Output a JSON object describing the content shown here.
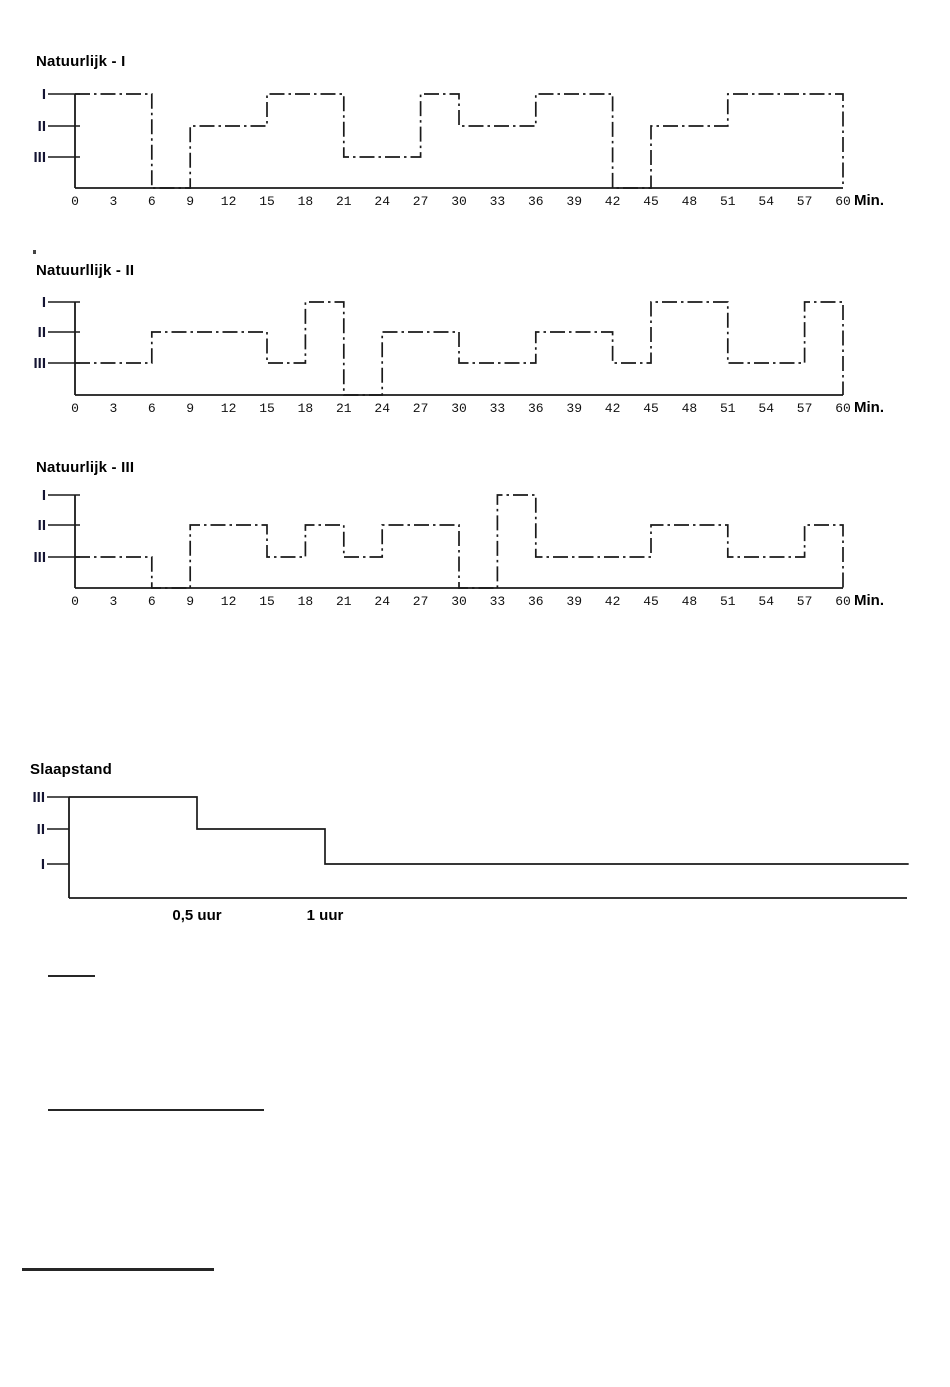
{
  "page": {
    "background": "#ffffff",
    "ink_color": "#1a1a1a"
  },
  "chart_data": [
    {
      "type": "line",
      "subtype": "step",
      "line_style": "dash-dot",
      "title": "Natuurlijk - I",
      "xlabel": "Min.",
      "xlim": [
        0,
        60
      ],
      "x_tick_interval": 3,
      "x_ticks": [
        0,
        3,
        6,
        9,
        12,
        15,
        18,
        21,
        24,
        27,
        30,
        33,
        36,
        39,
        42,
        45,
        48,
        51,
        54,
        57,
        60
      ],
      "y_categories_top_to_bottom": [
        "I",
        "II",
        "III"
      ],
      "grid": false,
      "segments": [
        {
          "from": 0,
          "to": 6,
          "level": "I"
        },
        {
          "from": 6,
          "to": 9,
          "level": "off"
        },
        {
          "from": 9,
          "to": 15,
          "level": "II"
        },
        {
          "from": 15,
          "to": 21,
          "level": "I"
        },
        {
          "from": 21,
          "to": 27,
          "level": "III"
        },
        {
          "from": 27,
          "to": 30,
          "level": "I"
        },
        {
          "from": 30,
          "to": 36,
          "level": "II"
        },
        {
          "from": 36,
          "to": 42,
          "level": "I"
        },
        {
          "from": 42,
          "to": 45,
          "level": "off"
        },
        {
          "from": 45,
          "to": 51,
          "level": "II"
        },
        {
          "from": 51,
          "to": 60,
          "level": "I"
        }
      ]
    },
    {
      "type": "line",
      "subtype": "step",
      "line_style": "dash-dot",
      "title": "Natuurllijk - II",
      "xlabel": "Min.",
      "xlim": [
        0,
        60
      ],
      "x_tick_interval": 3,
      "x_ticks": [
        0,
        3,
        6,
        9,
        12,
        15,
        18,
        21,
        24,
        27,
        30,
        33,
        36,
        39,
        42,
        45,
        48,
        51,
        54,
        57,
        60
      ],
      "y_categories_top_to_bottom": [
        "I",
        "II",
        "III"
      ],
      "grid": false,
      "segments": [
        {
          "from": 0,
          "to": 6,
          "level": "III"
        },
        {
          "from": 6,
          "to": 15,
          "level": "II"
        },
        {
          "from": 15,
          "to": 18,
          "level": "III"
        },
        {
          "from": 18,
          "to": 21,
          "level": "I"
        },
        {
          "from": 21,
          "to": 24,
          "level": "off"
        },
        {
          "from": 24,
          "to": 30,
          "level": "II"
        },
        {
          "from": 30,
          "to": 36,
          "level": "III"
        },
        {
          "from": 36,
          "to": 42,
          "level": "II"
        },
        {
          "from": 42,
          "to": 45,
          "level": "III"
        },
        {
          "from": 45,
          "to": 51,
          "level": "I"
        },
        {
          "from": 51,
          "to": 57,
          "level": "III"
        },
        {
          "from": 57,
          "to": 60,
          "level": "I"
        }
      ]
    },
    {
      "type": "line",
      "subtype": "step",
      "line_style": "dash-dot",
      "title": "Natuurlijk - III",
      "xlabel": "Min.",
      "xlim": [
        0,
        60
      ],
      "x_tick_interval": 3,
      "x_ticks": [
        0,
        3,
        6,
        9,
        12,
        15,
        18,
        21,
        24,
        27,
        30,
        33,
        36,
        39,
        42,
        45,
        48,
        51,
        54,
        57,
        60
      ],
      "y_categories_top_to_bottom": [
        "I",
        "II",
        "III"
      ],
      "grid": false,
      "segments": [
        {
          "from": 0,
          "to": 6,
          "level": "III"
        },
        {
          "from": 6,
          "to": 9,
          "level": "off"
        },
        {
          "from": 9,
          "to": 15,
          "level": "II"
        },
        {
          "from": 15,
          "to": 18,
          "level": "III"
        },
        {
          "from": 18,
          "to": 21,
          "level": "II"
        },
        {
          "from": 21,
          "to": 24,
          "level": "III"
        },
        {
          "from": 24,
          "to": 30,
          "level": "II"
        },
        {
          "from": 30,
          "to": 33,
          "level": "off"
        },
        {
          "from": 33,
          "to": 36,
          "level": "I"
        },
        {
          "from": 36,
          "to": 45,
          "level": "III"
        },
        {
          "from": 45,
          "to": 51,
          "level": "II"
        },
        {
          "from": 51,
          "to": 57,
          "level": "III"
        },
        {
          "from": 57,
          "to": 60,
          "level": "II"
        }
      ]
    },
    {
      "type": "line",
      "subtype": "step",
      "line_style": "solid",
      "title": "Slaapstand",
      "x_unit": "uur",
      "y_categories_top_to_bottom": [
        "III",
        "II",
        "I"
      ],
      "grid": false,
      "x_annotations": [
        {
          "label": "0,5 uur",
          "x": 0.5
        },
        {
          "label": "1 uur",
          "x": 1
        }
      ],
      "segments": [
        {
          "from": 0,
          "to": 0.5,
          "level": "III"
        },
        {
          "from": 0.5,
          "to": 1,
          "level": "II"
        },
        {
          "from": 1,
          "to": 3.28,
          "level": "I"
        }
      ]
    }
  ]
}
